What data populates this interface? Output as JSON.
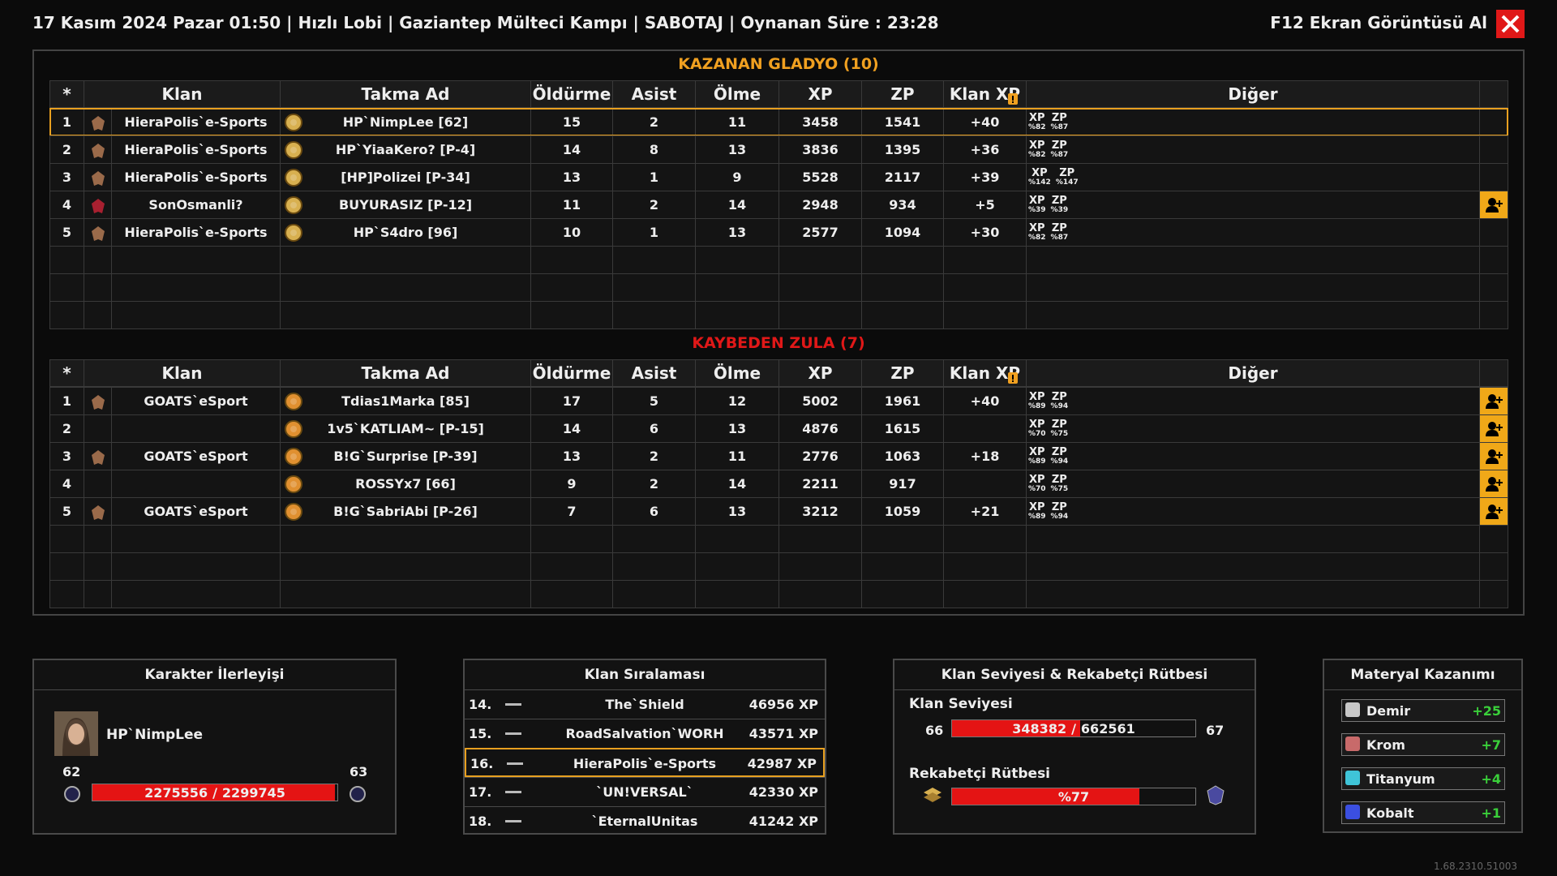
{
  "header": {
    "info": "17 Kasım 2024 Pazar 01:50 | Hızlı Lobi | Gaziantep Mülteci Kampı | SABOTAJ | Oynanan Süre : 23:28",
    "screenshot": "F12 Ekran Görüntüsü Al"
  },
  "columns": [
    "*",
    "Klan",
    "Takma Ad",
    "Öldürme",
    "Asist",
    "Ölme",
    "XP",
    "ZP",
    "Klan XP",
    "Diğer"
  ],
  "bonus_labels": {
    "xp": "XP",
    "zp": "ZP"
  },
  "winners": {
    "title": "KAZANAN GLADYO (10)",
    "rows": [
      {
        "rank": "1",
        "clan": "HieraPolis`e-Sports",
        "nick": "HP`NimpLee [62]",
        "kills": "15",
        "assists": "2",
        "deaths": "11",
        "xp": "3458",
        "zp": "1541",
        "clan_xp": "+40",
        "xp_bonus": "%82",
        "zp_bonus": "%87"
      },
      {
        "rank": "2",
        "clan": "HieraPolis`e-Sports",
        "nick": "HP`YiaaKero? [P-4]",
        "kills": "14",
        "assists": "8",
        "deaths": "13",
        "xp": "3836",
        "zp": "1395",
        "clan_xp": "+36",
        "xp_bonus": "%82",
        "zp_bonus": "%87"
      },
      {
        "rank": "3",
        "clan": "HieraPolis`e-Sports",
        "nick": "[HP]Polizei [P-34]",
        "kills": "13",
        "assists": "1",
        "deaths": "9",
        "xp": "5528",
        "zp": "2117",
        "clan_xp": "+39",
        "xp_bonus": "%142",
        "zp_bonus": "%147"
      },
      {
        "rank": "4",
        "clan": "SonOsmanli?",
        "nick": "BUYURASIZ [P-12]",
        "kills": "11",
        "assists": "2",
        "deaths": "14",
        "xp": "2948",
        "zp": "934",
        "clan_xp": "+5",
        "xp_bonus": "%39",
        "zp_bonus": "%39"
      },
      {
        "rank": "5",
        "clan": "HieraPolis`e-Sports",
        "nick": "HP`S4dro [96]",
        "kills": "10",
        "assists": "1",
        "deaths": "13",
        "xp": "2577",
        "zp": "1094",
        "clan_xp": "+30",
        "xp_bonus": "%82",
        "zp_bonus": "%87"
      }
    ]
  },
  "losers": {
    "title": "KAYBEDEN ZULA (7)",
    "rows": [
      {
        "rank": "1",
        "clan": "GOATS`eSport",
        "nick": "Tdias1Marka [85]",
        "kills": "17",
        "assists": "5",
        "deaths": "12",
        "xp": "5002",
        "zp": "1961",
        "clan_xp": "+40",
        "xp_bonus": "%89",
        "zp_bonus": "%94"
      },
      {
        "rank": "2",
        "clan": null,
        "nick": "1v5`KATLIAM~ [P-15]",
        "kills": "14",
        "assists": "6",
        "deaths": "13",
        "xp": "4876",
        "zp": "1615",
        "clan_xp": null,
        "xp_bonus": "%70",
        "zp_bonus": "%75"
      },
      {
        "rank": "3",
        "clan": "GOATS`eSport",
        "nick": "B!G`Surprise [P-39]",
        "kills": "13",
        "assists": "2",
        "deaths": "11",
        "xp": "2776",
        "zp": "1063",
        "clan_xp": "+18",
        "xp_bonus": "%89",
        "zp_bonus": "%94"
      },
      {
        "rank": "4",
        "clan": null,
        "nick": "ROSSYx7 [66]",
        "kills": "9",
        "assists": "2",
        "deaths": "14",
        "xp": "2211",
        "zp": "917",
        "clan_xp": null,
        "xp_bonus": "%70",
        "zp_bonus": "%75"
      },
      {
        "rank": "5",
        "clan": "GOATS`eSport",
        "nick": "B!G`SabriAbi [P-26]",
        "kills": "7",
        "assists": "6",
        "deaths": "13",
        "xp": "3212",
        "zp": "1059",
        "clan_xp": "+21",
        "xp_bonus": "%89",
        "zp_bonus": "%94"
      }
    ]
  },
  "character": {
    "title": "Karakter İlerleyişi",
    "name": "HP`NimpLee",
    "level": 62,
    "next_level": 63,
    "xp_current": 2275556,
    "xp_max": 2299745,
    "separator": "/"
  },
  "clan_ranking": {
    "title": "Klan Sıralaması",
    "rows": [
      {
        "rank": "14.",
        "name": "The`Shield",
        "xp": "46956 XP"
      },
      {
        "rank": "15.",
        "name": "RoadSalvation`WORH",
        "xp": "43571 XP"
      },
      {
        "rank": "16.",
        "name": "HieraPolis`e-Sports",
        "xp": "42987 XP"
      },
      {
        "rank": "17.",
        "name": "`UN!VERSAL`",
        "xp": "42330 XP"
      },
      {
        "rank": "18.",
        "name": "`EternalUnitas",
        "xp": "41242 XP"
      }
    ]
  },
  "clan_level": {
    "title": "Klan Seviyesi & Rekabetçi Rütbesi",
    "level_label": "Klan Seviyesi",
    "level": 66,
    "next_level": 67,
    "current": 348382,
    "max": 662561,
    "separator": "/",
    "rank_label": "Rekabetçi Rütbesi",
    "rank_progress": {
      "value": 77,
      "label": "%77"
    }
  },
  "materials": {
    "title": "Materyal Kazanımı",
    "items": [
      {
        "name": "Demir",
        "amount": "+25",
        "color": "#c8c8c8"
      },
      {
        "name": "Krom",
        "amount": "+7",
        "color": "#c86a6a"
      },
      {
        "name": "Titanyum",
        "amount": "+4",
        "color": "#3fc4d8"
      },
      {
        "name": "Kobalt",
        "amount": "+1",
        "color": "#3b4fe0"
      }
    ]
  },
  "version": "1.68.2310.51003"
}
